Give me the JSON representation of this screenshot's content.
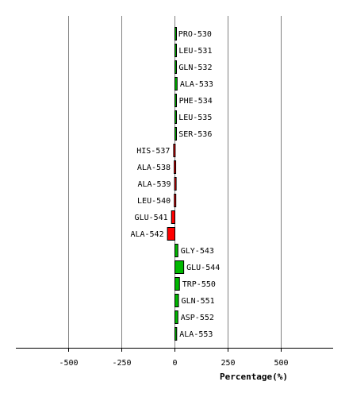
{
  "chart_data": {
    "type": "bar",
    "orientation": "horizontal",
    "categories": [
      "PRO-530",
      "LEU-531",
      "GLN-532",
      "ALA-533",
      "PHE-534",
      "LEU-535",
      "SER-536",
      "HIS-537",
      "ALA-538",
      "ALA-539",
      "LEU-540",
      "GLU-541",
      "ALA-542",
      "GLY-543",
      "GLU-544",
      "TRP-550",
      "GLN-551",
      "ASP-552",
      "ALA-553"
    ],
    "values": [
      3,
      5,
      5,
      10.5,
      6,
      4.5,
      4.5,
      -6,
      -3.5,
      -1.5,
      -3,
      -16,
      -35,
      14,
      41.5,
      21.5,
      17,
      14,
      8.5
    ],
    "xlabel": "Percentage(%)",
    "ylabel": "",
    "xlim": [
      -750,
      750
    ],
    "xticks": [
      -500,
      -250,
      0,
      250,
      500
    ],
    "xtick_labels": [
      "-500",
      "-250",
      "0",
      "250",
      "500"
    ],
    "grid": "vertical",
    "colors": {
      "positive": "#00b800",
      "negative": "#ff0000",
      "outline": "#000000",
      "grid": "#808080"
    }
  }
}
